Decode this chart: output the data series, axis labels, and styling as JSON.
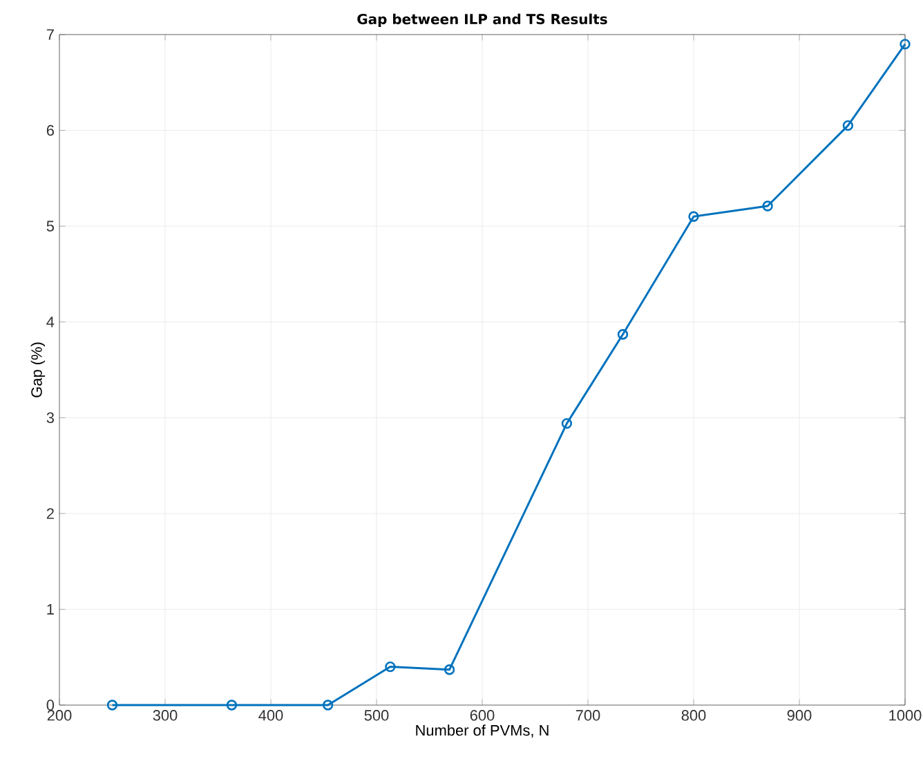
{
  "chart_data": {
    "type": "line",
    "title": "Gap between ILP and TS Results",
    "xlabel": "Number of PVMs, N",
    "ylabel": "Gap (%)",
    "x": [
      250,
      363,
      454,
      513,
      569,
      680,
      733,
      800,
      870,
      946,
      1000
    ],
    "series": [
      {
        "color": "#0072bd",
        "values": [
          0,
          0,
          0,
          0.4,
          0.37,
          2.94,
          3.87,
          5.1,
          5.21,
          6.05,
          6.9
        ]
      }
    ],
    "xlim": [
      200,
      1000
    ],
    "ylim": [
      0,
      7
    ],
    "xticks": [
      200,
      300,
      400,
      500,
      600,
      700,
      800,
      900,
      1000
    ],
    "yticks": [
      0,
      1,
      2,
      3,
      4,
      5,
      6,
      7
    ],
    "grid": true,
    "marker": "circle",
    "line_style": "solid"
  }
}
